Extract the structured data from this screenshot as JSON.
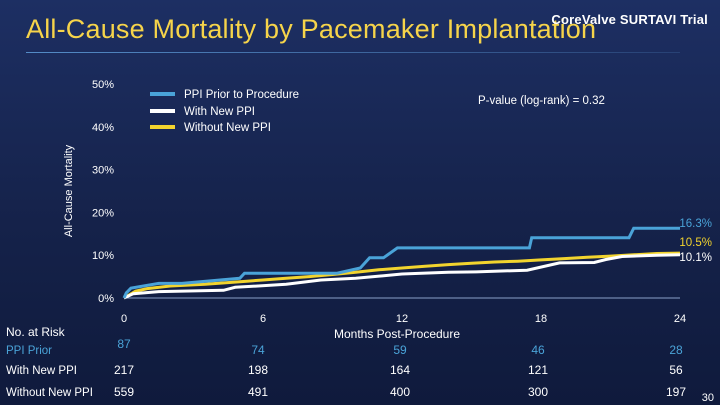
{
  "header": {
    "title": "All-Cause Mortality by Pacemaker Implantation",
    "brand": "CoreValve SURTAVI Trial",
    "slide_number": "30"
  },
  "colors": {
    "title": "#f6d44a",
    "ppi_prior": "#4aa3d8",
    "new_ppi": "#ffffff",
    "without_ppi": "#f2d42e"
  },
  "chart_data": {
    "type": "line",
    "title": "All-Cause Mortality by Pacemaker Implantation",
    "xlabel": "Months Post-Procedure",
    "ylabel": "All-Cause Mortality",
    "xlim": [
      0,
      24
    ],
    "ylim": [
      0,
      50
    ],
    "x_ticks": [
      "0",
      "6",
      "12",
      "18",
      "24"
    ],
    "y_ticks": [
      "0%",
      "10%",
      "20%",
      "30%",
      "40%",
      "50%"
    ],
    "annotation": "P-value (log-rank) = 0.32",
    "series": [
      {
        "name": "PPI Prior to Procedure",
        "color": "#4aa3d8",
        "end_label": "16.3%",
        "points": [
          [
            0,
            0
          ],
          [
            0.1,
            1.2
          ],
          [
            0.3,
            2.3
          ],
          [
            1.5,
            3.4
          ],
          [
            2.5,
            3.4
          ],
          [
            5,
            4.6
          ],
          [
            5.2,
            5.8
          ],
          [
            9.2,
            5.8
          ],
          [
            10.2,
            7
          ],
          [
            10.6,
            9.4
          ],
          [
            11.2,
            9.4
          ],
          [
            11.8,
            11.7
          ],
          [
            17.5,
            11.7
          ],
          [
            17.6,
            14.1
          ],
          [
            21.8,
            14.1
          ],
          [
            22,
            16.3
          ],
          [
            24,
            16.3
          ]
        ]
      },
      {
        "name": "With New PPI",
        "color": "#ffffff",
        "end_label": "10.1%",
        "points": [
          [
            0,
            0
          ],
          [
            0.4,
            1
          ],
          [
            1.5,
            1.5
          ],
          [
            4.3,
            1.8
          ],
          [
            4.8,
            2.5
          ],
          [
            7,
            3.2
          ],
          [
            8.5,
            4.2
          ],
          [
            10,
            4.6
          ],
          [
            12,
            5.6
          ],
          [
            14,
            6
          ],
          [
            15.2,
            6.1
          ],
          [
            17.4,
            6.5
          ],
          [
            18.8,
            8.2
          ],
          [
            20.3,
            8.3
          ],
          [
            20.8,
            9
          ],
          [
            21.5,
            9.7
          ],
          [
            23,
            10
          ],
          [
            24,
            10.1
          ]
        ]
      },
      {
        "name": "Without New PPI",
        "color": "#f2d42e",
        "end_label": "10.5%",
        "points": [
          [
            0,
            0
          ],
          [
            0.5,
            1.6
          ],
          [
            1,
            2.2
          ],
          [
            2,
            2.8
          ],
          [
            3.5,
            3.2
          ],
          [
            5,
            3.8
          ],
          [
            6,
            4.2
          ],
          [
            7,
            4.6
          ],
          [
            8,
            5
          ],
          [
            9,
            5.5
          ],
          [
            10,
            6
          ],
          [
            11,
            6.6
          ],
          [
            12,
            7
          ],
          [
            13,
            7.4
          ],
          [
            14,
            7.8
          ],
          [
            15,
            8.1
          ],
          [
            16,
            8.4
          ],
          [
            17,
            8.6
          ],
          [
            18,
            8.9
          ],
          [
            19,
            9.2
          ],
          [
            20,
            9.5
          ],
          [
            21,
            9.8
          ],
          [
            22,
            10.1
          ],
          [
            23,
            10.4
          ],
          [
            24,
            10.5
          ]
        ]
      }
    ],
    "legend": {
      "placement": "top-left",
      "entries": [
        "PPI Prior to Procedure",
        "With New PPI",
        "Without New PPI"
      ]
    },
    "at_risk": {
      "header": "No. at Risk",
      "rows": [
        {
          "label": "PPI Prior",
          "color": "#4aa3d8",
          "values": [
            "87",
            "74",
            "59",
            "46",
            "28"
          ]
        },
        {
          "label": "With New PPI",
          "color": "#ffffff",
          "values": [
            "217",
            "198",
            "164",
            "121",
            "56"
          ]
        },
        {
          "label": "Without New PPI",
          "color": "#ffffff",
          "values": [
            "559",
            "491",
            "400",
            "300",
            "197"
          ]
        }
      ]
    }
  }
}
